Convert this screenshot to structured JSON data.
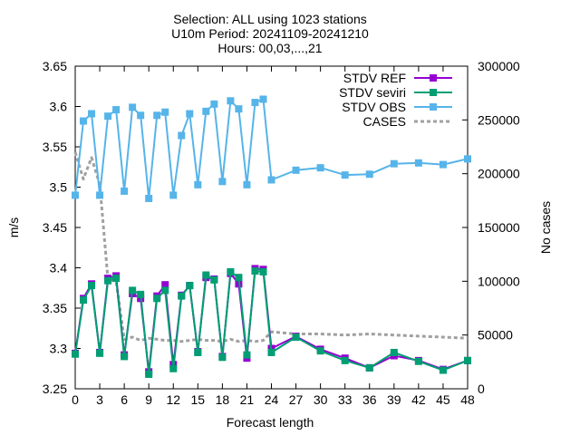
{
  "chart_data": {
    "type": "line",
    "title_lines": [
      "Selection: ALL using  1023 stations",
      "U10m   Period: 20241109-20241210",
      "Hours: 00,03,...,21"
    ],
    "xlabel": "Forecast length",
    "ylabel": "m/s",
    "y2label": "No cases",
    "xlim": [
      0,
      48
    ],
    "ylim": [
      3.25,
      3.65
    ],
    "y2lim": [
      0,
      300000
    ],
    "xticks": [
      0,
      3,
      6,
      9,
      12,
      15,
      18,
      21,
      24,
      27,
      30,
      33,
      36,
      39,
      42,
      45,
      48
    ],
    "xtick_labels": [
      "0",
      "3",
      "6",
      "9",
      "12",
      "15",
      "18",
      "21",
      "24",
      "27",
      "30",
      "33",
      "36",
      "39",
      "42",
      "45",
      "48"
    ],
    "yticks": [
      3.25,
      3.3,
      3.35,
      3.4,
      3.45,
      3.5,
      3.55,
      3.6,
      3.65
    ],
    "ytick_labels": [
      "3.25",
      "3.3",
      "3.35",
      "3.4",
      "3.45",
      "3.5",
      "3.55",
      "3.6",
      "3.65"
    ],
    "y2ticks": [
      0,
      50000,
      100000,
      150000,
      200000,
      250000,
      300000
    ],
    "y2tick_labels": [
      "0",
      "50000",
      "100000",
      "150000",
      "200000",
      "250000",
      "300000"
    ],
    "legend_position": "top-right",
    "series": [
      {
        "name": "STDV REF",
        "axis": "y",
        "color": "#9400d3",
        "marker": "square",
        "x": [
          0,
          1,
          2,
          3,
          4,
          5,
          6,
          7,
          8,
          9,
          10,
          11,
          12,
          13,
          14,
          15,
          16,
          17,
          18,
          19,
          20,
          21,
          22,
          23,
          24,
          27,
          30,
          33,
          36,
          39,
          42,
          45,
          48
        ],
        "values": [
          3.294,
          3.362,
          3.38,
          3.295,
          3.387,
          3.39,
          3.292,
          3.368,
          3.362,
          3.271,
          3.365,
          3.379,
          3.28,
          3.366,
          3.378,
          3.296,
          3.388,
          3.386,
          3.29,
          3.393,
          3.38,
          3.288,
          3.399,
          3.398,
          3.3,
          3.315,
          3.299,
          3.288,
          3.276,
          3.291,
          3.285,
          3.274,
          3.285
        ]
      },
      {
        "name": "STDV seviri",
        "axis": "y",
        "color": "#009e73",
        "marker": "square",
        "x": [
          0,
          1,
          2,
          3,
          4,
          5,
          6,
          7,
          8,
          9,
          10,
          11,
          12,
          13,
          14,
          15,
          16,
          17,
          18,
          19,
          20,
          21,
          22,
          23,
          24,
          27,
          30,
          33,
          36,
          39,
          42,
          45,
          48
        ],
        "values": [
          3.293,
          3.36,
          3.378,
          3.294,
          3.384,
          3.387,
          3.29,
          3.372,
          3.367,
          3.268,
          3.362,
          3.372,
          3.275,
          3.365,
          3.378,
          3.295,
          3.391,
          3.385,
          3.289,
          3.395,
          3.388,
          3.292,
          3.396,
          3.395,
          3.295,
          3.314,
          3.297,
          3.285,
          3.276,
          3.295,
          3.284,
          3.273,
          3.285
        ]
      },
      {
        "name": "STDV OBS",
        "axis": "y",
        "color": "#56b4e9",
        "marker": "square",
        "x": [
          0,
          1,
          2,
          3,
          4,
          5,
          6,
          7,
          8,
          9,
          10,
          11,
          12,
          13,
          14,
          15,
          16,
          17,
          18,
          19,
          20,
          21,
          22,
          23,
          24,
          27,
          30,
          33,
          36,
          39,
          42,
          45,
          48
        ],
        "values": [
          3.49,
          3.582,
          3.591,
          3.49,
          3.588,
          3.596,
          3.495,
          3.599,
          3.589,
          3.486,
          3.589,
          3.593,
          3.49,
          3.564,
          3.591,
          3.503,
          3.594,
          3.603,
          3.507,
          3.607,
          3.597,
          3.503,
          3.605,
          3.609,
          3.509,
          3.521,
          3.524,
          3.515,
          3.516,
          3.529,
          3.53,
          3.528,
          3.535
        ]
      },
      {
        "name": "CASES",
        "axis": "y2",
        "color": "#a0a0a0",
        "style": "dashed",
        "x": [
          0,
          1,
          2,
          3,
          4,
          5,
          6,
          7,
          8,
          9,
          10,
          11,
          12,
          13,
          14,
          15,
          16,
          17,
          18,
          19,
          20,
          21,
          22,
          23,
          24,
          27,
          30,
          33,
          36,
          39,
          42,
          45,
          48
        ],
        "values": [
          220000,
          195000,
          215000,
          190000,
          102000,
          100000,
          46000,
          48000,
          45000,
          47000,
          46000,
          45000,
          45000,
          44000,
          45000,
          46000,
          45000,
          45000,
          44000,
          46000,
          44000,
          45000,
          44000,
          45000,
          53000,
          51000,
          51000,
          50000,
          51000,
          50000,
          49000,
          48000,
          47000
        ]
      }
    ]
  }
}
